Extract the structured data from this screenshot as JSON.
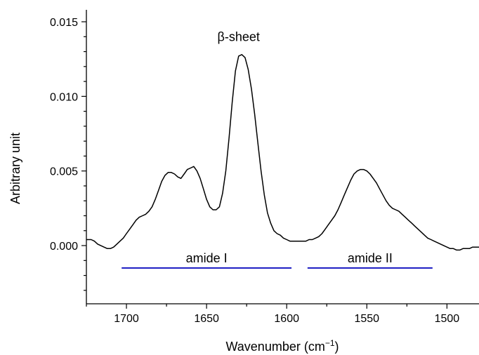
{
  "chart_data": {
    "type": "line",
    "title": "",
    "xlabel": "Wavenumber (cm",
    "xlabel_sup": "−1",
    "xlabel_close": ")",
    "ylabel": "Arbitrary unit",
    "xlim": [
      1725,
      1480
    ],
    "ylim": [
      -0.0039,
      0.0158
    ],
    "x_reversed": true,
    "grid": false,
    "x_ticks": [
      1700,
      1650,
      1600,
      1550,
      1500
    ],
    "x_tick_labels": [
      "1700",
      "1650",
      "1600",
      "1550",
      "1500"
    ],
    "y_ticks": [
      0.0,
      0.005,
      0.01,
      0.015
    ],
    "y_tick_labels": [
      "0.000",
      "0.005",
      "0.010",
      "0.015"
    ],
    "series": [
      {
        "color": "#000000",
        "x": [
          1725,
          1722,
          1720,
          1718,
          1716,
          1714,
          1712,
          1710,
          1708,
          1706,
          1704,
          1702,
          1700,
          1698,
          1696,
          1694,
          1692,
          1690,
          1688,
          1686,
          1684,
          1682,
          1680,
          1678,
          1676,
          1674,
          1672,
          1670,
          1668,
          1666,
          1664,
          1662,
          1660,
          1658,
          1656,
          1654,
          1652,
          1650,
          1648,
          1646,
          1644,
          1642,
          1640,
          1638,
          1636,
          1634,
          1632,
          1630,
          1628,
          1626,
          1624,
          1622,
          1620,
          1618,
          1616,
          1614,
          1612,
          1610,
          1608,
          1606,
          1604,
          1602,
          1600,
          1598,
          1596,
          1594,
          1592,
          1590,
          1588,
          1586,
          1584,
          1582,
          1580,
          1578,
          1576,
          1574,
          1572,
          1570,
          1568,
          1566,
          1564,
          1562,
          1560,
          1558,
          1556,
          1554,
          1552,
          1550,
          1548,
          1546,
          1544,
          1542,
          1540,
          1538,
          1536,
          1534,
          1532,
          1530,
          1528,
          1526,
          1524,
          1522,
          1520,
          1518,
          1516,
          1514,
          1512,
          1510,
          1508,
          1506,
          1504,
          1502,
          1500,
          1498,
          1496,
          1494,
          1492,
          1490,
          1488,
          1486,
          1484,
          1482,
          1480
        ],
        "y": [
          0.0004,
          0.0004,
          0.0003,
          0.0001,
          0.0,
          -0.0001,
          -0.0002,
          -0.0002,
          -0.0001,
          0.0001,
          0.0003,
          0.0005,
          0.0008,
          0.0011,
          0.0014,
          0.0017,
          0.0019,
          0.002,
          0.0021,
          0.0023,
          0.0026,
          0.0031,
          0.0037,
          0.0043,
          0.0047,
          0.0049,
          0.0049,
          0.0048,
          0.0046,
          0.0045,
          0.0048,
          0.0051,
          0.0052,
          0.0053,
          0.005,
          0.0045,
          0.0038,
          0.0031,
          0.0026,
          0.0024,
          0.0024,
          0.0026,
          0.0035,
          0.005,
          0.0072,
          0.0096,
          0.0117,
          0.0127,
          0.0128,
          0.0126,
          0.0118,
          0.0105,
          0.0088,
          0.0069,
          0.005,
          0.0034,
          0.0022,
          0.0015,
          0.001,
          0.0008,
          0.0007,
          0.0005,
          0.0004,
          0.0003,
          0.0003,
          0.0003,
          0.0003,
          0.0003,
          0.0003,
          0.0004,
          0.0004,
          0.0005,
          0.0006,
          0.0008,
          0.0011,
          0.0014,
          0.0017,
          0.002,
          0.0024,
          0.0029,
          0.0034,
          0.0039,
          0.0044,
          0.0048,
          0.005,
          0.0051,
          0.0051,
          0.005,
          0.0048,
          0.0045,
          0.0042,
          0.0038,
          0.0034,
          0.003,
          0.0027,
          0.0025,
          0.0024,
          0.0023,
          0.0021,
          0.0019,
          0.0017,
          0.0015,
          0.0013,
          0.0011,
          0.0009,
          0.0007,
          0.0005,
          0.0004,
          0.0003,
          0.0002,
          0.0001,
          0.0,
          -0.0001,
          -0.0002,
          -0.0002,
          -0.0003,
          -0.0003,
          -0.0002,
          -0.0002,
          -0.0002,
          -0.0001,
          -0.0001,
          -0.0001
        ]
      }
    ],
    "annotations": [
      {
        "text": "β-sheet",
        "x": 1630,
        "y": 0.0137
      }
    ],
    "bands": [
      {
        "label": "amide I",
        "x_start": 1703,
        "x_end": 1597,
        "y": -0.0015,
        "color": "#1f1fc4"
      },
      {
        "label": "amide II",
        "x_start": 1587,
        "x_end": 1509,
        "y": -0.0015,
        "color": "#1f1fc4"
      }
    ]
  }
}
